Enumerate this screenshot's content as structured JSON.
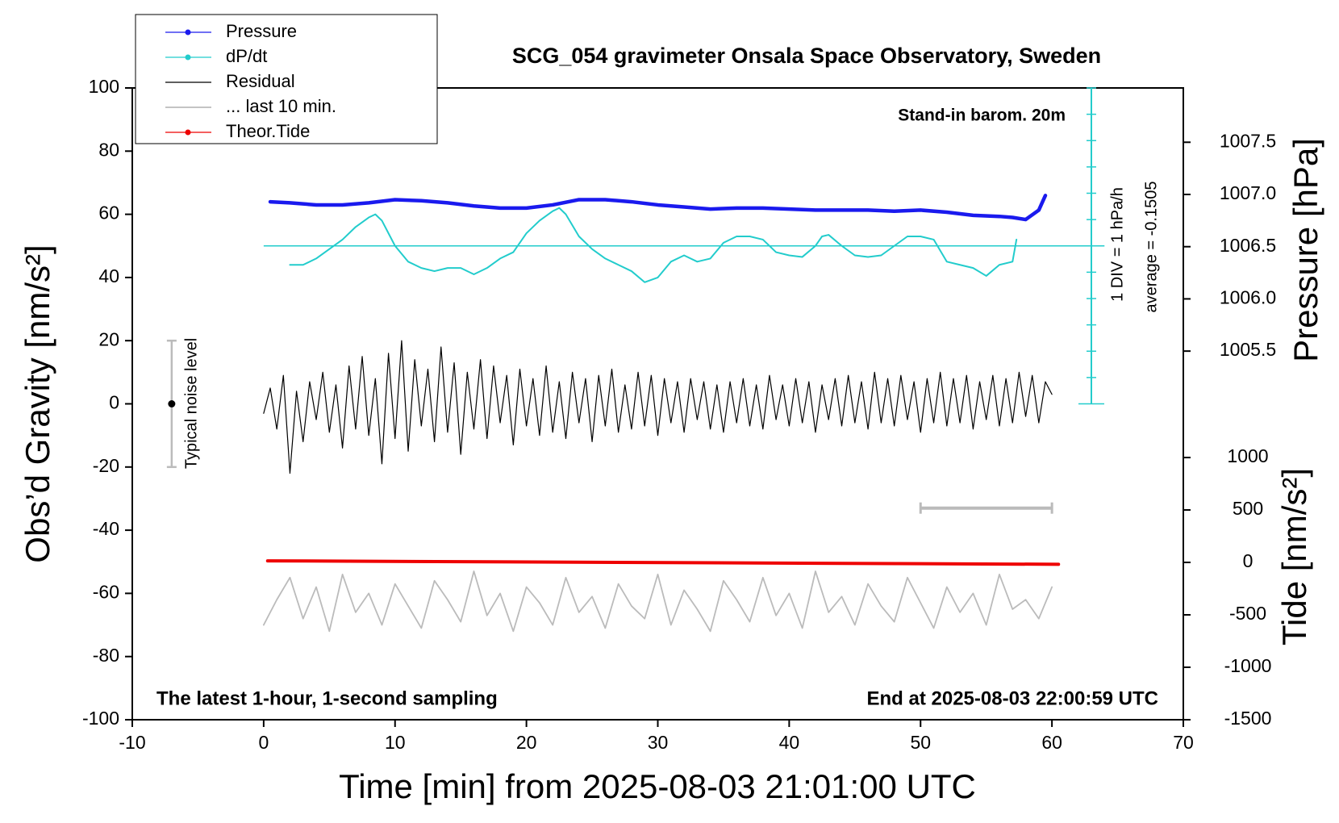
{
  "chart_data": {
    "type": "line",
    "title": "SCG_054 gravimeter Onsala Space Observatory, Sweden",
    "x_label": "Time [min] from 2025-08-03 21:01:00 UTC",
    "y_label": "Obs’d Gravity [nm/s²]",
    "y2_label": "Pressure [hPa]",
    "y3_label": "Tide [nm/s²]",
    "xlim": [
      -10,
      70
    ],
    "xticks": [
      -10,
      0,
      10,
      20,
      30,
      40,
      50,
      60,
      70
    ],
    "ylim": [
      -100,
      100
    ],
    "yticks": [
      -100,
      -80,
      -60,
      -40,
      -20,
      0,
      20,
      40,
      60,
      80,
      100
    ],
    "y2lim": [
      1001.97,
      1008.02
    ],
    "y2ticks": [
      1005.5,
      {
        "value": 1006,
        "label": "1006.0"
      },
      1006.5,
      {
        "value": 1007,
        "label": "1007.0"
      },
      1007.5
    ],
    "y3lim": [
      -1500,
      4524
    ],
    "y3ticks": [
      -1500,
      -1000,
      -500,
      0,
      500,
      1000
    ],
    "annotations": {
      "barometer": "Stand-in barom. 20m",
      "division": "1 DIV = 1 hPa/h",
      "average": "average = -0.1505",
      "noise": "Typical noise level",
      "sampling": "The latest 1-hour, 1-second sampling",
      "end": "End at 2025-08-03 22:00:59 UTC"
    },
    "noise_bar": {
      "x": -7,
      "low": -20,
      "center": 0,
      "high": 20,
      "color": "#bbbbbb"
    },
    "window_bar": {
      "x": [
        50,
        60
      ],
      "y": -33,
      "color": "#bbbbbb"
    },
    "dpdt_reference": {
      "x": [
        0,
        64
      ],
      "y": 50,
      "color": "#22cccc"
    },
    "dpdt_scale": {
      "x": 63,
      "ticks": [
        0,
        8.33,
        16.67,
        25,
        33.33,
        41.67,
        50,
        58.33,
        66.67,
        75,
        83.33,
        91.67,
        100
      ],
      "color": "#22cccc"
    },
    "series": [
      {
        "name": "... last 10 min.",
        "color": "#bbbbbb",
        "width": 1.8,
        "marker": false,
        "x": [
          0,
          1,
          2,
          3,
          4,
          5,
          6,
          7,
          8,
          9,
          10,
          11,
          12,
          13,
          14,
          15,
          16,
          17,
          18,
          19,
          20,
          21,
          22,
          23,
          24,
          25,
          26,
          27,
          28,
          29,
          30,
          31,
          32,
          33,
          34,
          35,
          36,
          37,
          38,
          39,
          40,
          41,
          42,
          43,
          44,
          45,
          46,
          47,
          48,
          49,
          50,
          51,
          52,
          53,
          54,
          55,
          56,
          57,
          58,
          59,
          60
        ],
        "values": [
          -70,
          -62,
          -55,
          -68,
          -58,
          -72,
          -54,
          -66,
          -60,
          -70,
          -57,
          -64,
          -71,
          -56,
          -62,
          -69,
          -53,
          -67,
          -60,
          -72,
          -58,
          -63,
          -70,
          -55,
          -66,
          -61,
          -71,
          -57,
          -64,
          -68,
          -54,
          -70,
          -59,
          -65,
          -72,
          -56,
          -62,
          -69,
          -55,
          -67,
          -60,
          -71,
          -53,
          -66,
          -61,
          -70,
          -57,
          -64,
          -69,
          -55,
          -63,
          -71,
          -58,
          -66,
          -60,
          -70,
          -54,
          -65,
          -62,
          -68,
          -58
        ]
      },
      {
        "name": "Residual",
        "color": "#000000",
        "width": 1.2,
        "marker": false,
        "x": [
          0,
          0.5,
          1,
          1.5,
          2,
          2.5,
          3,
          3.5,
          4,
          4.5,
          5,
          5.5,
          6,
          6.5,
          7,
          7.5,
          8,
          8.5,
          9,
          9.5,
          10,
          10.5,
          11,
          11.5,
          12,
          12.5,
          13,
          13.5,
          14,
          14.5,
          15,
          15.5,
          16,
          16.5,
          17,
          17.5,
          18,
          18.5,
          19,
          19.5,
          20,
          20.5,
          21,
          21.5,
          22,
          22.5,
          23,
          23.5,
          24,
          24.5,
          25,
          25.5,
          26,
          26.5,
          27,
          27.5,
          28,
          28.5,
          29,
          29.5,
          30,
          30.5,
          31,
          31.5,
          32,
          32.5,
          33,
          33.5,
          34,
          34.5,
          35,
          35.5,
          36,
          36.5,
          37,
          37.5,
          38,
          38.5,
          39,
          39.5,
          40,
          40.5,
          41,
          41.5,
          42,
          42.5,
          43,
          43.5,
          44,
          44.5,
          45,
          45.5,
          46,
          46.5,
          47,
          47.5,
          48,
          48.5,
          49,
          49.5,
          50,
          50.5,
          51,
          51.5,
          52,
          52.5,
          53,
          53.5,
          54,
          54.5,
          55,
          55.5,
          56,
          56.5,
          57,
          57.5,
          58,
          58.5,
          59,
          59.5,
          60
        ],
        "values": [
          -3,
          5,
          -8,
          9,
          -22,
          4,
          -12,
          7,
          -5,
          10,
          -9,
          6,
          -14,
          12,
          -8,
          15,
          -10,
          8,
          -19,
          16,
          -11,
          20,
          -15,
          14,
          -7,
          11,
          -12,
          18,
          -9,
          13,
          -16,
          10,
          -8,
          14,
          -11,
          12,
          -6,
          9,
          -13,
          11,
          -7,
          8,
          -10,
          12,
          -9,
          7,
          -11,
          10,
          -6,
          8,
          -12,
          9,
          -7,
          11,
          -9,
          6,
          -8,
          10,
          -7,
          9,
          -10,
          8,
          -6,
          7,
          -9,
          8,
          -5,
          7,
          -8,
          6,
          -9,
          7,
          -6,
          8,
          -7,
          6,
          -8,
          9,
          -5,
          6,
          -7,
          8,
          -6,
          7,
          -9,
          6,
          -5,
          8,
          -7,
          9,
          -6,
          7,
          -8,
          10,
          -6,
          8,
          -7,
          9,
          -5,
          7,
          -9,
          8,
          -6,
          10,
          -7,
          8,
          -6,
          9,
          -8,
          7,
          -5,
          9,
          -7,
          8,
          -6,
          10,
          -4,
          9,
          -6,
          7,
          3
        ]
      },
      {
        "name": "Theor.Tide",
        "color": "#ee0000",
        "width": 4,
        "marker": true,
        "axis": "y3",
        "x": [
          0.3,
          60.5
        ],
        "values": [
          15,
          -18
        ]
      },
      {
        "name": "Pressure",
        "color": "#1a1aee",
        "width": 4.5,
        "marker": true,
        "axis": "y2",
        "x": [
          0.5,
          2,
          4,
          6,
          8,
          10,
          12,
          14,
          16,
          18,
          20,
          22,
          24,
          26,
          28,
          30,
          32,
          34,
          36,
          38,
          40,
          42,
          44,
          46,
          48,
          50,
          52,
          54,
          56,
          57,
          58,
          59,
          59.5
        ],
        "values": [
          1006.93,
          1006.92,
          1006.9,
          1006.9,
          1006.92,
          1006.95,
          1006.94,
          1006.92,
          1006.89,
          1006.87,
          1006.87,
          1006.9,
          1006.95,
          1006.95,
          1006.93,
          1006.9,
          1006.88,
          1006.86,
          1006.87,
          1006.87,
          1006.86,
          1006.85,
          1006.85,
          1006.85,
          1006.84,
          1006.85,
          1006.83,
          1006.8,
          1006.79,
          1006.78,
          1006.76,
          1006.85,
          1006.99
        ]
      },
      {
        "name": "dP/dt",
        "color": "#22cccc",
        "width": 2,
        "marker": true,
        "x": [
          2,
          3,
          4,
          5,
          6,
          7,
          8,
          8.5,
          9,
          10,
          11,
          12,
          13,
          14,
          15,
          16,
          17,
          18,
          19,
          20,
          21,
          22,
          22.5,
          23,
          24,
          25,
          26,
          27,
          28,
          29,
          30,
          31,
          32,
          33,
          34,
          35,
          36,
          37,
          38,
          39,
          40,
          41,
          42,
          42.5,
          43,
          44,
          45,
          46,
          47,
          48,
          49,
          50,
          51,
          52,
          53,
          54,
          55,
          56,
          57,
          57.3
        ],
        "values": [
          44,
          44,
          46,
          49,
          52,
          56,
          59,
          60,
          58,
          50,
          45,
          43,
          42,
          43,
          43,
          41,
          43,
          46,
          48,
          54,
          58,
          61,
          62,
          60,
          53,
          49,
          46,
          44,
          42,
          38.5,
          40,
          45,
          47,
          45,
          46,
          51,
          53,
          53,
          52,
          48,
          47,
          46.5,
          50,
          53,
          53.5,
          50,
          47,
          46.5,
          47,
          50,
          53,
          53,
          52,
          45,
          44,
          43,
          40.5,
          44,
          45,
          52
        ]
      }
    ],
    "legend_order": [
      3,
      4,
      1,
      0,
      2
    ]
  }
}
